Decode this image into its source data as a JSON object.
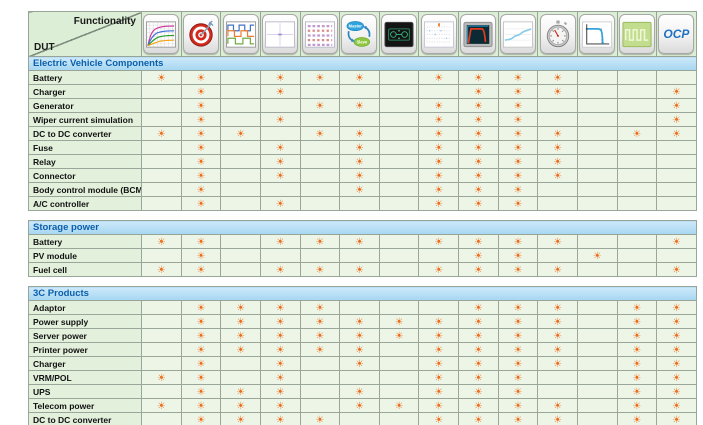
{
  "header": {
    "functionality_label": "Functionality",
    "dut_label": "DUT",
    "columns": [
      {
        "icon": "iv-curves-icon"
      },
      {
        "icon": "target-icon"
      },
      {
        "icon": "square-waveforms-icon"
      },
      {
        "icon": "blank-chart-window-icon"
      },
      {
        "icon": "data-table-icon"
      },
      {
        "icon": "master-slave-icon",
        "labels": [
          "Master",
          "Slave"
        ]
      },
      {
        "icon": "circuit-screen-icon"
      },
      {
        "icon": "log-chart-icon"
      },
      {
        "icon": "scope-waveform-icon"
      },
      {
        "icon": "trend-curve-icon"
      },
      {
        "icon": "stopwatch-icon"
      },
      {
        "icon": "vi-curve-icon"
      },
      {
        "icon": "pulse-train-icon"
      },
      {
        "icon": "ocp-icon",
        "label": "OCP"
      }
    ]
  },
  "marker": {
    "glyph": "☀",
    "color": "#ee6a17",
    "meaning": "supported"
  },
  "colors": {
    "section_bar_top": "#cde9fa",
    "section_bar_bottom": "#a6d6f1",
    "section_title_text": "#0b5fac",
    "marker": "#ee6a17"
  },
  "sections": [
    {
      "title": "Electric Vehicle Components",
      "rows": [
        {
          "label": "Battery",
          "marks": [
            1,
            1,
            0,
            1,
            1,
            1,
            0,
            1,
            1,
            1,
            1,
            0,
            0,
            0
          ]
        },
        {
          "label": "Charger",
          "marks": [
            0,
            1,
            0,
            1,
            0,
            0,
            0,
            0,
            1,
            1,
            1,
            0,
            0,
            1
          ]
        },
        {
          "label": "Generator",
          "marks": [
            0,
            1,
            0,
            0,
            1,
            1,
            0,
            1,
            1,
            1,
            0,
            0,
            0,
            1
          ]
        },
        {
          "label": "Wiper current simulation",
          "marks": [
            0,
            1,
            0,
            1,
            0,
            0,
            0,
            1,
            1,
            1,
            0,
            0,
            0,
            1
          ]
        },
        {
          "label": "DC to DC converter",
          "marks": [
            1,
            1,
            1,
            0,
            1,
            1,
            0,
            1,
            1,
            1,
            1,
            0,
            1,
            1
          ]
        },
        {
          "label": "Fuse",
          "marks": [
            0,
            1,
            0,
            1,
            0,
            1,
            0,
            1,
            1,
            1,
            1,
            0,
            0,
            0
          ]
        },
        {
          "label": "Relay",
          "marks": [
            0,
            1,
            0,
            1,
            0,
            1,
            0,
            1,
            1,
            1,
            1,
            0,
            0,
            0
          ]
        },
        {
          "label": "Connector",
          "marks": [
            0,
            1,
            0,
            1,
            0,
            1,
            0,
            1,
            1,
            1,
            1,
            0,
            0,
            0
          ]
        },
        {
          "label": "Body control module (BCM)",
          "marks": [
            0,
            1,
            0,
            0,
            0,
            1,
            0,
            1,
            1,
            1,
            0,
            0,
            0,
            0
          ]
        },
        {
          "label": "A/C controller",
          "marks": [
            0,
            1,
            0,
            1,
            0,
            0,
            0,
            1,
            1,
            1,
            0,
            0,
            0,
            0
          ]
        }
      ]
    },
    {
      "title": "Storage power",
      "rows": [
        {
          "label": "Battery",
          "marks": [
            1,
            1,
            0,
            1,
            1,
            1,
            0,
            1,
            1,
            1,
            1,
            0,
            0,
            1
          ]
        },
        {
          "label": "PV module",
          "marks": [
            0,
            1,
            0,
            0,
            0,
            0,
            0,
            0,
            1,
            1,
            0,
            1,
            0,
            0
          ]
        },
        {
          "label": "Fuel cell",
          "marks": [
            1,
            1,
            0,
            1,
            1,
            1,
            0,
            1,
            1,
            1,
            1,
            0,
            0,
            1
          ]
        }
      ]
    },
    {
      "title": "3C Products",
      "rows": [
        {
          "label": "Adaptor",
          "marks": [
            0,
            1,
            1,
            1,
            1,
            0,
            0,
            0,
            1,
            1,
            1,
            0,
            1,
            1
          ]
        },
        {
          "label": "Power supply",
          "marks": [
            0,
            1,
            1,
            1,
            1,
            1,
            1,
            1,
            1,
            1,
            1,
            0,
            1,
            1
          ]
        },
        {
          "label": "Server power",
          "marks": [
            0,
            1,
            1,
            1,
            1,
            1,
            1,
            1,
            1,
            1,
            1,
            0,
            1,
            1
          ]
        },
        {
          "label": "Printer power",
          "marks": [
            0,
            1,
            1,
            1,
            1,
            1,
            0,
            1,
            1,
            1,
            1,
            0,
            1,
            1
          ]
        },
        {
          "label": "Charger",
          "marks": [
            0,
            1,
            0,
            1,
            0,
            1,
            0,
            1,
            1,
            1,
            1,
            0,
            1,
            1
          ]
        },
        {
          "label": "VRM/POL",
          "marks": [
            1,
            1,
            0,
            1,
            0,
            0,
            0,
            1,
            1,
            1,
            0,
            0,
            1,
            1
          ]
        },
        {
          "label": "UPS",
          "marks": [
            0,
            1,
            1,
            1,
            0,
            1,
            0,
            1,
            1,
            1,
            0,
            0,
            1,
            1
          ]
        },
        {
          "label": "Telecom power",
          "marks": [
            1,
            1,
            1,
            1,
            0,
            1,
            1,
            1,
            1,
            1,
            1,
            0,
            1,
            1
          ]
        },
        {
          "label": "DC to DC converter",
          "marks": [
            0,
            1,
            1,
            1,
            1,
            0,
            0,
            1,
            1,
            1,
            1,
            0,
            1,
            1
          ]
        }
      ]
    }
  ]
}
